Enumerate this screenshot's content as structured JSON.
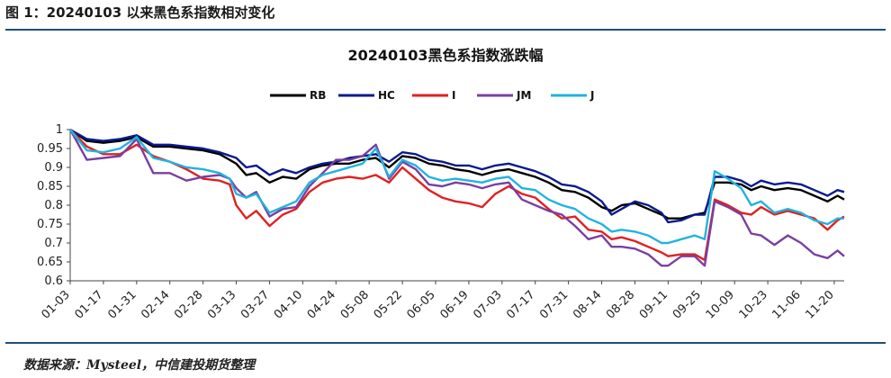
{
  "page": {
    "figure_title": "图 1：20240103 以来黑色系指数相对变化",
    "source": "数据来源：Mysteel，中信建投期货整理"
  },
  "chart_data": {
    "type": "line",
    "title": "20240103黑色系指数涨跌幅",
    "xlabel": "",
    "ylabel": "",
    "ylim": [
      0.6,
      1.0
    ],
    "yticks": [
      "1",
      "0.95",
      "0.9",
      "0.85",
      "0.8",
      "0.75",
      "0.7",
      "0.65",
      "0.6"
    ],
    "grid": false,
    "legend_position": "top",
    "x_tick_labels": [
      "01-03",
      "01-17",
      "01-31",
      "02-14",
      "02-28",
      "03-13",
      "03-27",
      "04-10",
      "04-24",
      "05-08",
      "05-22",
      "06-05",
      "06-19",
      "07-03",
      "07-17",
      "07-31",
      "08-14",
      "08-28",
      "09-11",
      "09-25",
      "10-09",
      "10-23",
      "11-06",
      "11-20"
    ],
    "x_tick_index": [
      0,
      10,
      20,
      30,
      40,
      50,
      60,
      70,
      80,
      90,
      100,
      110,
      120,
      130,
      140,
      150,
      160,
      170,
      180,
      190,
      200,
      210,
      220,
      230
    ],
    "x_count": 233,
    "series": [
      {
        "name": "RB",
        "color": "#000000",
        "values": [
          [
            0,
            1.0
          ],
          [
            5,
            0.97
          ],
          [
            10,
            0.965
          ],
          [
            15,
            0.97
          ],
          [
            20,
            0.98
          ],
          [
            25,
            0.955
          ],
          [
            30,
            0.955
          ],
          [
            35,
            0.95
          ],
          [
            40,
            0.945
          ],
          [
            45,
            0.935
          ],
          [
            50,
            0.91
          ],
          [
            53,
            0.88
          ],
          [
            56,
            0.885
          ],
          [
            60,
            0.86
          ],
          [
            64,
            0.875
          ],
          [
            68,
            0.87
          ],
          [
            72,
            0.895
          ],
          [
            76,
            0.905
          ],
          [
            80,
            0.91
          ],
          [
            84,
            0.91
          ],
          [
            88,
            0.92
          ],
          [
            92,
            0.925
          ],
          [
            96,
            0.9
          ],
          [
            100,
            0.93
          ],
          [
            104,
            0.925
          ],
          [
            108,
            0.91
          ],
          [
            112,
            0.905
          ],
          [
            116,
            0.895
          ],
          [
            120,
            0.89
          ],
          [
            124,
            0.88
          ],
          [
            128,
            0.89
          ],
          [
            132,
            0.895
          ],
          [
            136,
            0.885
          ],
          [
            140,
            0.875
          ],
          [
            144,
            0.86
          ],
          [
            148,
            0.84
          ],
          [
            152,
            0.835
          ],
          [
            156,
            0.82
          ],
          [
            160,
            0.795
          ],
          [
            163,
            0.785
          ],
          [
            166,
            0.8
          ],
          [
            170,
            0.805
          ],
          [
            174,
            0.79
          ],
          [
            178,
            0.775
          ],
          [
            180,
            0.765
          ],
          [
            184,
            0.765
          ],
          [
            188,
            0.775
          ],
          [
            191,
            0.78
          ],
          [
            194,
            0.86
          ],
          [
            198,
            0.86
          ],
          [
            202,
            0.855
          ],
          [
            205,
            0.84
          ],
          [
            208,
            0.85
          ],
          [
            212,
            0.84
          ],
          [
            216,
            0.845
          ],
          [
            220,
            0.84
          ],
          [
            224,
            0.825
          ],
          [
            228,
            0.81
          ],
          [
            231,
            0.825
          ],
          [
            233,
            0.815
          ]
        ]
      },
      {
        "name": "HC",
        "color": "#0a1a8c",
        "values": [
          [
            0,
            1.0
          ],
          [
            5,
            0.975
          ],
          [
            10,
            0.97
          ],
          [
            15,
            0.975
          ],
          [
            20,
            0.985
          ],
          [
            25,
            0.96
          ],
          [
            30,
            0.96
          ],
          [
            35,
            0.955
          ],
          [
            40,
            0.95
          ],
          [
            45,
            0.94
          ],
          [
            50,
            0.925
          ],
          [
            53,
            0.9
          ],
          [
            56,
            0.905
          ],
          [
            60,
            0.88
          ],
          [
            64,
            0.895
          ],
          [
            68,
            0.885
          ],
          [
            72,
            0.9
          ],
          [
            76,
            0.91
          ],
          [
            80,
            0.915
          ],
          [
            84,
            0.925
          ],
          [
            88,
            0.93
          ],
          [
            92,
            0.935
          ],
          [
            96,
            0.915
          ],
          [
            100,
            0.94
          ],
          [
            104,
            0.935
          ],
          [
            108,
            0.92
          ],
          [
            112,
            0.915
          ],
          [
            116,
            0.905
          ],
          [
            120,
            0.905
          ],
          [
            124,
            0.895
          ],
          [
            128,
            0.905
          ],
          [
            132,
            0.91
          ],
          [
            136,
            0.9
          ],
          [
            140,
            0.89
          ],
          [
            144,
            0.875
          ],
          [
            148,
            0.855
          ],
          [
            152,
            0.85
          ],
          [
            156,
            0.835
          ],
          [
            160,
            0.81
          ],
          [
            163,
            0.775
          ],
          [
            166,
            0.79
          ],
          [
            170,
            0.81
          ],
          [
            174,
            0.8
          ],
          [
            178,
            0.78
          ],
          [
            180,
            0.755
          ],
          [
            184,
            0.76
          ],
          [
            188,
            0.775
          ],
          [
            191,
            0.775
          ],
          [
            194,
            0.875
          ],
          [
            198,
            0.875
          ],
          [
            202,
            0.865
          ],
          [
            205,
            0.85
          ],
          [
            208,
            0.865
          ],
          [
            212,
            0.855
          ],
          [
            216,
            0.86
          ],
          [
            220,
            0.855
          ],
          [
            224,
            0.84
          ],
          [
            228,
            0.825
          ],
          [
            231,
            0.84
          ],
          [
            233,
            0.835
          ]
        ]
      },
      {
        "name": "I",
        "color": "#e02020",
        "values": [
          [
            0,
            1.0
          ],
          [
            5,
            0.955
          ],
          [
            10,
            0.935
          ],
          [
            15,
            0.935
          ],
          [
            20,
            0.96
          ],
          [
            25,
            0.93
          ],
          [
            30,
            0.915
          ],
          [
            35,
            0.895
          ],
          [
            40,
            0.87
          ],
          [
            45,
            0.865
          ],
          [
            48,
            0.855
          ],
          [
            50,
            0.8
          ],
          [
            53,
            0.765
          ],
          [
            56,
            0.785
          ],
          [
            60,
            0.745
          ],
          [
            64,
            0.775
          ],
          [
            68,
            0.79
          ],
          [
            72,
            0.835
          ],
          [
            76,
            0.86
          ],
          [
            80,
            0.87
          ],
          [
            84,
            0.875
          ],
          [
            88,
            0.87
          ],
          [
            92,
            0.88
          ],
          [
            96,
            0.86
          ],
          [
            100,
            0.9
          ],
          [
            104,
            0.87
          ],
          [
            108,
            0.84
          ],
          [
            112,
            0.82
          ],
          [
            116,
            0.81
          ],
          [
            120,
            0.805
          ],
          [
            124,
            0.795
          ],
          [
            128,
            0.83
          ],
          [
            132,
            0.85
          ],
          [
            136,
            0.83
          ],
          [
            140,
            0.82
          ],
          [
            144,
            0.79
          ],
          [
            148,
            0.765
          ],
          [
            152,
            0.77
          ],
          [
            156,
            0.735
          ],
          [
            160,
            0.73
          ],
          [
            163,
            0.71
          ],
          [
            166,
            0.715
          ],
          [
            170,
            0.705
          ],
          [
            174,
            0.69
          ],
          [
            178,
            0.675
          ],
          [
            180,
            0.665
          ],
          [
            184,
            0.67
          ],
          [
            188,
            0.67
          ],
          [
            191,
            0.655
          ],
          [
            194,
            0.815
          ],
          [
            198,
            0.8
          ],
          [
            202,
            0.78
          ],
          [
            205,
            0.775
          ],
          [
            208,
            0.795
          ],
          [
            212,
            0.775
          ],
          [
            216,
            0.785
          ],
          [
            220,
            0.775
          ],
          [
            224,
            0.765
          ],
          [
            228,
            0.735
          ],
          [
            231,
            0.76
          ],
          [
            233,
            0.77
          ]
        ]
      },
      {
        "name": "JM",
        "color": "#7a3fa0",
        "values": [
          [
            0,
            1.0
          ],
          [
            5,
            0.92
          ],
          [
            10,
            0.925
          ],
          [
            15,
            0.93
          ],
          [
            20,
            0.975
          ],
          [
            25,
            0.885
          ],
          [
            30,
            0.885
          ],
          [
            35,
            0.865
          ],
          [
            40,
            0.875
          ],
          [
            45,
            0.88
          ],
          [
            48,
            0.87
          ],
          [
            50,
            0.845
          ],
          [
            53,
            0.82
          ],
          [
            56,
            0.835
          ],
          [
            60,
            0.77
          ],
          [
            64,
            0.79
          ],
          [
            68,
            0.795
          ],
          [
            72,
            0.85
          ],
          [
            76,
            0.885
          ],
          [
            80,
            0.92
          ],
          [
            84,
            0.92
          ],
          [
            88,
            0.93
          ],
          [
            92,
            0.96
          ],
          [
            96,
            0.87
          ],
          [
            100,
            0.915
          ],
          [
            104,
            0.895
          ],
          [
            108,
            0.855
          ],
          [
            112,
            0.85
          ],
          [
            116,
            0.86
          ],
          [
            120,
            0.855
          ],
          [
            124,
            0.845
          ],
          [
            128,
            0.855
          ],
          [
            132,
            0.86
          ],
          [
            136,
            0.815
          ],
          [
            140,
            0.8
          ],
          [
            144,
            0.785
          ],
          [
            148,
            0.775
          ],
          [
            152,
            0.745
          ],
          [
            156,
            0.71
          ],
          [
            160,
            0.72
          ],
          [
            163,
            0.69
          ],
          [
            166,
            0.69
          ],
          [
            170,
            0.685
          ],
          [
            174,
            0.67
          ],
          [
            178,
            0.64
          ],
          [
            180,
            0.64
          ],
          [
            184,
            0.665
          ],
          [
            188,
            0.665
          ],
          [
            191,
            0.64
          ],
          [
            194,
            0.81
          ],
          [
            198,
            0.795
          ],
          [
            202,
            0.775
          ],
          [
            205,
            0.725
          ],
          [
            208,
            0.72
          ],
          [
            212,
            0.695
          ],
          [
            216,
            0.72
          ],
          [
            220,
            0.7
          ],
          [
            224,
            0.67
          ],
          [
            228,
            0.66
          ],
          [
            231,
            0.68
          ],
          [
            233,
            0.665
          ]
        ]
      },
      {
        "name": "J",
        "color": "#21b3e0",
        "values": [
          [
            0,
            1.0
          ],
          [
            5,
            0.945
          ],
          [
            10,
            0.94
          ],
          [
            15,
            0.95
          ],
          [
            20,
            0.98
          ],
          [
            25,
            0.925
          ],
          [
            30,
            0.915
          ],
          [
            35,
            0.9
          ],
          [
            40,
            0.895
          ],
          [
            45,
            0.885
          ],
          [
            48,
            0.87
          ],
          [
            50,
            0.83
          ],
          [
            53,
            0.82
          ],
          [
            56,
            0.83
          ],
          [
            60,
            0.78
          ],
          [
            64,
            0.795
          ],
          [
            68,
            0.81
          ],
          [
            72,
            0.86
          ],
          [
            76,
            0.88
          ],
          [
            80,
            0.89
          ],
          [
            84,
            0.9
          ],
          [
            88,
            0.91
          ],
          [
            92,
            0.95
          ],
          [
            96,
            0.875
          ],
          [
            100,
            0.92
          ],
          [
            104,
            0.905
          ],
          [
            108,
            0.875
          ],
          [
            112,
            0.865
          ],
          [
            116,
            0.87
          ],
          [
            120,
            0.865
          ],
          [
            124,
            0.86
          ],
          [
            128,
            0.87
          ],
          [
            132,
            0.875
          ],
          [
            136,
            0.845
          ],
          [
            140,
            0.84
          ],
          [
            144,
            0.815
          ],
          [
            148,
            0.8
          ],
          [
            152,
            0.79
          ],
          [
            156,
            0.765
          ],
          [
            160,
            0.75
          ],
          [
            163,
            0.73
          ],
          [
            166,
            0.735
          ],
          [
            170,
            0.73
          ],
          [
            174,
            0.72
          ],
          [
            178,
            0.7
          ],
          [
            180,
            0.7
          ],
          [
            184,
            0.71
          ],
          [
            188,
            0.72
          ],
          [
            191,
            0.71
          ],
          [
            194,
            0.89
          ],
          [
            198,
            0.87
          ],
          [
            202,
            0.845
          ],
          [
            205,
            0.8
          ],
          [
            208,
            0.81
          ],
          [
            212,
            0.78
          ],
          [
            216,
            0.79
          ],
          [
            220,
            0.78
          ],
          [
            224,
            0.76
          ],
          [
            228,
            0.75
          ],
          [
            231,
            0.765
          ],
          [
            233,
            0.765
          ]
        ]
      }
    ]
  }
}
